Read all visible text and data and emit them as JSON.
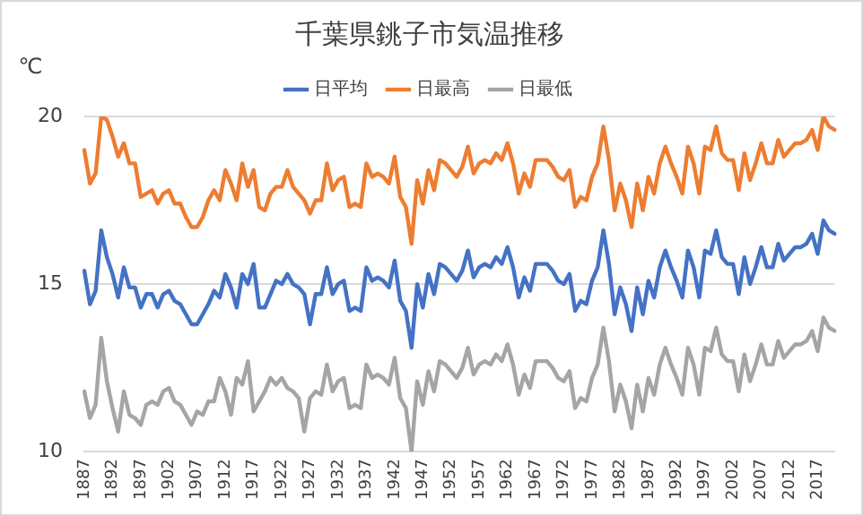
{
  "chart_data": {
    "type": "line",
    "title": "千葉県銚子市気温推移",
    "ylabel": "℃",
    "categories": [
      "1887",
      null,
      null,
      null,
      null,
      "1892",
      null,
      null,
      null,
      null,
      "1897",
      null,
      null,
      null,
      null,
      "1902",
      null,
      null,
      null,
      null,
      "1907",
      null,
      null,
      null,
      null,
      "1912",
      null,
      null,
      null,
      null,
      "1917",
      null,
      null,
      null,
      null,
      "1922",
      null,
      null,
      null,
      null,
      "1927",
      null,
      null,
      null,
      null,
      "1932",
      null,
      null,
      null,
      null,
      "1937",
      null,
      null,
      null,
      null,
      "1942",
      null,
      null,
      null,
      null,
      "1947",
      null,
      null,
      null,
      null,
      "1952",
      null,
      null,
      null,
      null,
      "1957",
      null,
      null,
      null,
      null,
      "1962",
      null,
      null,
      null,
      null,
      "1967",
      null,
      null,
      null,
      null,
      "1972",
      null,
      null,
      null,
      null,
      "1977",
      null,
      null,
      null,
      null,
      "1982",
      null,
      null,
      null,
      null,
      "1987",
      null,
      null,
      null,
      null,
      "1992",
      null,
      null,
      null,
      null,
      "1997",
      null,
      null,
      null,
      null,
      "2002",
      null,
      null,
      null,
      null,
      "2007",
      null,
      null,
      null,
      null,
      "2012",
      null,
      null,
      null,
      null,
      "2017",
      null,
      null,
      null
    ],
    "series": [
      {
        "name": "日平均",
        "color": "#4472c4",
        "values": [
          15.4,
          14.4,
          14.8,
          16.6,
          15.8,
          15.3,
          14.6,
          15.5,
          14.9,
          14.9,
          14.3,
          14.7,
          14.7,
          14.3,
          14.7,
          14.8,
          14.5,
          14.4,
          14.1,
          13.8,
          13.8,
          14.1,
          14.4,
          14.8,
          14.6,
          15.3,
          14.9,
          14.3,
          15.3,
          15.0,
          15.6,
          14.3,
          14.3,
          14.7,
          15.1,
          15.0,
          15.3,
          15.0,
          14.9,
          14.7,
          13.8,
          14.7,
          14.7,
          15.5,
          14.7,
          15.0,
          15.1,
          14.2,
          14.3,
          14.2,
          15.5,
          15.1,
          15.2,
          15.1,
          14.9,
          15.7,
          14.5,
          14.2,
          13.1,
          15.0,
          14.3,
          15.3,
          14.7,
          15.6,
          15.5,
          15.3,
          15.1,
          15.4,
          16.0,
          15.2,
          15.5,
          15.6,
          15.5,
          15.8,
          15.6,
          16.1,
          15.5,
          14.6,
          15.2,
          14.8,
          15.6,
          15.6,
          15.6,
          15.4,
          15.1,
          15.0,
          15.3,
          14.2,
          14.5,
          14.4,
          15.1,
          15.5,
          16.6,
          15.6,
          14.1,
          14.9,
          14.4,
          13.6,
          14.9,
          14.1,
          15.1,
          14.6,
          15.5,
          16.0,
          15.5,
          15.1,
          14.6,
          16.0,
          15.5,
          14.6,
          16.0,
          15.9,
          16.6,
          15.8,
          15.6,
          15.6,
          14.7,
          15.8,
          15.0,
          15.5,
          16.1,
          15.5,
          15.5,
          16.2,
          15.7,
          15.9,
          16.1,
          16.1,
          16.2,
          16.5,
          15.9,
          16.9,
          16.6,
          16.5
        ]
      },
      {
        "name": "日最高",
        "color": "#ed7d31",
        "values": [
          19.0,
          18.0,
          18.3,
          20.0,
          19.9,
          19.4,
          18.8,
          19.2,
          18.6,
          18.6,
          17.6,
          17.7,
          17.8,
          17.4,
          17.7,
          17.8,
          17.4,
          17.4,
          17.0,
          16.7,
          16.7,
          17.0,
          17.5,
          17.8,
          17.5,
          18.4,
          18.0,
          17.5,
          18.6,
          17.9,
          18.4,
          17.3,
          17.2,
          17.7,
          17.9,
          17.9,
          18.4,
          17.9,
          17.7,
          17.5,
          17.1,
          17.5,
          17.5,
          18.6,
          17.8,
          18.1,
          18.2,
          17.3,
          17.4,
          17.3,
          18.6,
          18.2,
          18.3,
          18.2,
          18.0,
          18.8,
          17.6,
          17.3,
          16.2,
          18.1,
          17.4,
          18.4,
          17.8,
          18.7,
          18.6,
          18.4,
          18.2,
          18.5,
          19.1,
          18.3,
          18.6,
          18.7,
          18.6,
          18.9,
          18.7,
          19.2,
          18.6,
          17.7,
          18.3,
          17.9,
          18.7,
          18.7,
          18.7,
          18.5,
          18.2,
          18.1,
          18.4,
          17.3,
          17.6,
          17.5,
          18.2,
          18.6,
          19.7,
          18.7,
          17.2,
          18.0,
          17.5,
          16.7,
          18.0,
          17.2,
          18.2,
          17.7,
          18.6,
          19.1,
          18.6,
          18.2,
          17.7,
          19.1,
          18.6,
          17.7,
          19.1,
          19.0,
          19.7,
          18.9,
          18.7,
          18.7,
          17.8,
          18.9,
          18.1,
          18.6,
          19.2,
          18.6,
          18.6,
          19.3,
          18.8,
          19.0,
          19.2,
          19.2,
          19.3,
          19.6,
          19.0,
          20.0,
          19.7,
          19.6
        ]
      },
      {
        "name": "日最低",
        "color": "#a5a5a5",
        "values": [
          11.8,
          11.0,
          11.4,
          13.4,
          12.1,
          11.3,
          10.6,
          11.8,
          11.1,
          11.0,
          10.8,
          11.4,
          11.5,
          11.4,
          11.8,
          11.9,
          11.5,
          11.4,
          11.1,
          10.8,
          11.2,
          11.1,
          11.5,
          11.5,
          12.2,
          11.8,
          11.1,
          12.2,
          12.0,
          12.7,
          11.2,
          11.5,
          11.8,
          12.2,
          12.0,
          12.2,
          11.9,
          11.8,
          11.6,
          10.6,
          11.6,
          11.8,
          11.7,
          12.6,
          11.8,
          12.1,
          12.2,
          11.3,
          11.4,
          11.3,
          12.6,
          12.2,
          12.3,
          12.2,
          12.0,
          12.8,
          11.6,
          11.3,
          10.0,
          12.1,
          11.4,
          12.4,
          11.8,
          12.7,
          12.6,
          12.4,
          12.2,
          12.5,
          13.1,
          12.3,
          12.6,
          12.7,
          12.6,
          12.9,
          12.7,
          13.2,
          12.6,
          11.7,
          12.3,
          11.9,
          12.7,
          12.7,
          12.7,
          12.5,
          12.2,
          12.1,
          12.4,
          11.3,
          11.6,
          11.5,
          12.2,
          12.6,
          13.7,
          12.7,
          11.2,
          12.0,
          11.5,
          10.7,
          12.0,
          11.2,
          12.2,
          11.7,
          12.6,
          13.1,
          12.6,
          12.2,
          11.7,
          13.1,
          12.6,
          11.7,
          13.1,
          13.0,
          13.7,
          12.9,
          12.7,
          12.7,
          11.8,
          12.9,
          12.1,
          12.6,
          13.2,
          12.6,
          12.6,
          13.3,
          12.8,
          13.0,
          13.2,
          13.2,
          13.3,
          13.6,
          13.0,
          14.0,
          13.7,
          13.6
        ]
      }
    ],
    "ylim": [
      10,
      20
    ],
    "yticks": [
      10,
      15,
      20
    ],
    "grid": "y",
    "legend": "top",
    "marker": "none",
    "line_style": "solid"
  }
}
